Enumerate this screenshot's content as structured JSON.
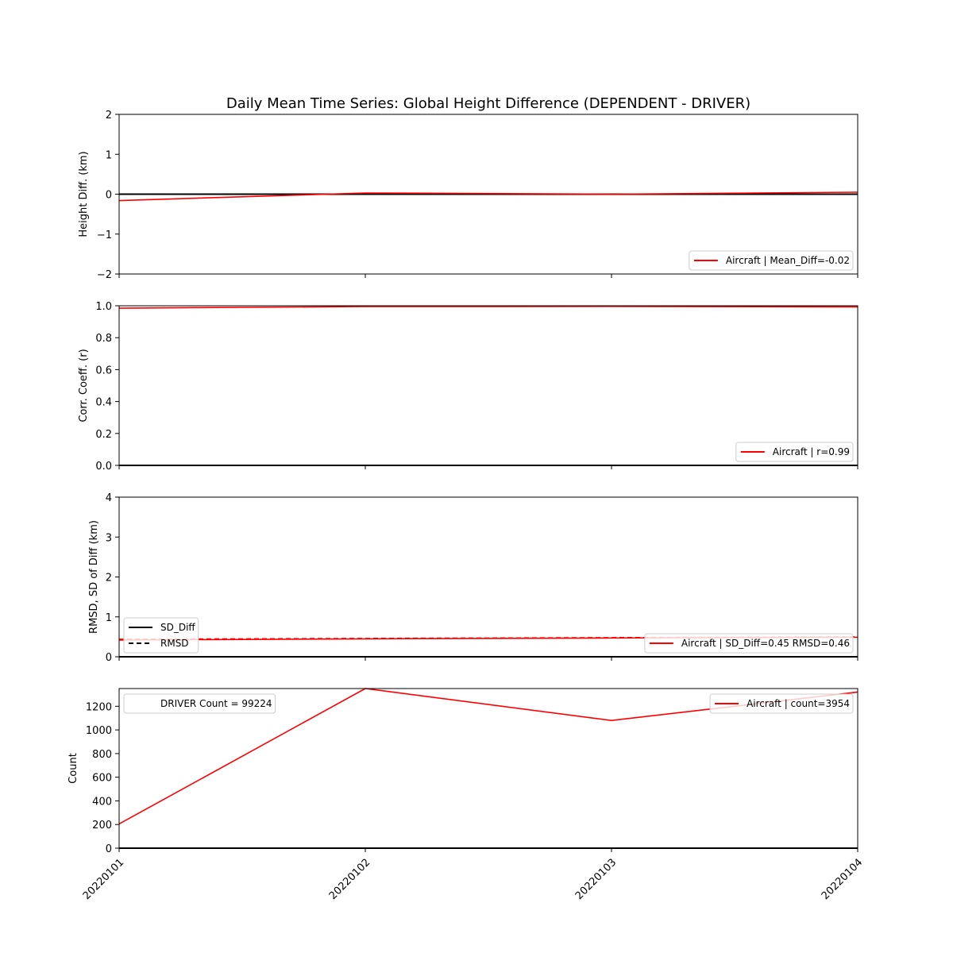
{
  "chart_data": {
    "title": "Daily Mean Time Series: Global Height Difference (DEPENDENT - DRIVER)",
    "type": "line",
    "x": [
      "20220101",
      "20220102",
      "20220103",
      "20220104"
    ],
    "panels": [
      {
        "id": "height",
        "ylabel": "Height Diff. (km)",
        "ylim": [
          -2,
          2
        ],
        "yticks": [
          -2,
          -1,
          0,
          1,
          2
        ],
        "ytick_labels": [
          "−2",
          "−1",
          "0",
          "1",
          "2"
        ],
        "series": [
          {
            "name": "Aircraft | Mean_Diff=-0.02",
            "values": [
              -0.16,
              0.03,
              0.0,
              0.05
            ],
            "color": "#ff0000",
            "style": "solid"
          }
        ],
        "reference_lines": [
          {
            "y": 0,
            "color": "#000000"
          }
        ],
        "legend": {
          "position": "lower-right",
          "entries": [
            {
              "label": "Aircraft | Mean_Diff=-0.02",
              "color": "#ff0000",
              "style": "solid"
            }
          ]
        }
      },
      {
        "id": "corr",
        "ylabel": "Corr. Coeff. (r)",
        "ylim": [
          0,
          1
        ],
        "yticks": [
          0,
          0.2,
          0.4,
          0.6,
          0.8,
          1.0
        ],
        "ytick_labels": [
          "0.0",
          "0.2",
          "0.4",
          "0.6",
          "0.8",
          "1.0"
        ],
        "series": [
          {
            "name": "Aircraft | r=0.99",
            "values": [
              0.985,
              0.995,
              0.996,
              0.993
            ],
            "color": "#ff0000",
            "style": "solid"
          }
        ],
        "reference_lines": [
          {
            "y": 0,
            "color": "#000000"
          }
        ],
        "legend": {
          "position": "lower-right",
          "entries": [
            {
              "label": "Aircraft | r=0.99",
              "color": "#ff0000",
              "style": "solid"
            }
          ]
        }
      },
      {
        "id": "rmsd",
        "ylabel": "RMSD, SD of Diff (km)",
        "ylim": [
          0,
          4
        ],
        "yticks": [
          0,
          1,
          2,
          3,
          4
        ],
        "ytick_labels": [
          "0",
          "1",
          "2",
          "3",
          "4"
        ],
        "series": [
          {
            "name": "SD_Diff",
            "values": [
              0.42,
              0.45,
              0.47,
              0.49
            ],
            "color": "#ff0000",
            "style": "solid"
          },
          {
            "name": "RMSD",
            "values": [
              0.44,
              0.46,
              0.48,
              0.5
            ],
            "color": "#ff0000",
            "style": "dashed"
          }
        ],
        "reference_lines": [
          {
            "y": 0,
            "color": "#000000"
          }
        ],
        "legend": {
          "position": "lower-right",
          "entries": [
            {
              "label": "Aircraft | SD_Diff=0.45 RMSD=0.46",
              "color": "#ff0000",
              "style": "solid"
            }
          ]
        },
        "legend2": {
          "position": "lower-left",
          "entries": [
            {
              "label": "SD_Diff",
              "color": "#000000",
              "style": "solid"
            },
            {
              "label": "RMSD",
              "color": "#000000",
              "style": "dashed"
            }
          ]
        }
      },
      {
        "id": "count",
        "ylabel": "Count",
        "ylim": [
          0,
          1350
        ],
        "yticks": [
          0,
          200,
          400,
          600,
          800,
          1000,
          1200
        ],
        "ytick_labels": [
          "0",
          "200",
          "400",
          "600",
          "800",
          "1000",
          "1200"
        ],
        "series": [
          {
            "name": "Aircraft | count=3954",
            "values": [
              205,
              1350,
              1080,
              1320
            ],
            "color": "#ff0000",
            "style": "solid"
          }
        ],
        "reference_lines": [
          {
            "y": 0,
            "color": "#000000"
          }
        ],
        "legend": {
          "position": "top-right",
          "entries": [
            {
              "label": "Aircraft | count=3954",
              "color": "#ff0000",
              "style": "solid"
            }
          ]
        },
        "legend2": {
          "position": "top-left",
          "entries": [
            {
              "label": "DRIVER Count = 99224",
              "color": "none",
              "style": "none"
            }
          ]
        }
      }
    ]
  }
}
